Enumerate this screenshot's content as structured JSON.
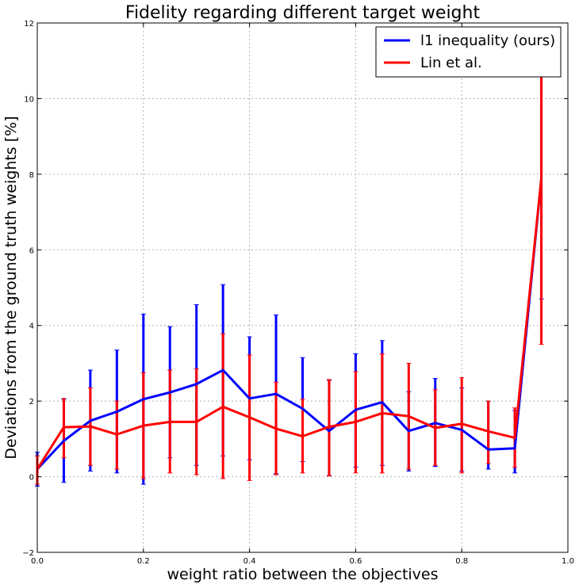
{
  "chart_data": {
    "type": "line",
    "title": "Fidelity regarding different target weight",
    "xlabel": "weight ratio between the objectives",
    "ylabel": "Deviations from the ground truth weights [%]",
    "xlim": [
      0.0,
      1.0
    ],
    "ylim": [
      -2,
      12
    ],
    "xticks": [
      0.0,
      0.2,
      0.4,
      0.6,
      0.8,
      1.0
    ],
    "xtick_labels": [
      "0.0",
      "0.2",
      "0.4",
      "0.6",
      "0.8",
      "1.0"
    ],
    "yticks": [
      -2,
      0,
      2,
      4,
      6,
      8,
      10,
      12
    ],
    "ytick_labels": [
      "−2",
      "0",
      "2",
      "4",
      "6",
      "8",
      "10",
      "12"
    ],
    "grid": true,
    "legend_position": "top-right",
    "x": [
      0.0,
      0.05,
      0.1,
      0.15,
      0.2,
      0.25,
      0.3,
      0.35,
      0.4,
      0.45,
      0.5,
      0.55,
      0.6,
      0.65,
      0.7,
      0.75,
      0.8,
      0.85,
      0.9,
      0.95
    ],
    "series": [
      {
        "name": "l1 inequality (ours)",
        "color": "#0000ff",
        "values": [
          0.2,
          0.95,
          1.48,
          1.72,
          2.05,
          2.23,
          2.45,
          2.82,
          2.07,
          2.19,
          1.8,
          1.21,
          1.77,
          1.97,
          1.21,
          1.42,
          1.24,
          0.72,
          0.75,
          7.9
        ],
        "err_low": [
          -0.25,
          -0.15,
          0.15,
          0.1,
          -0.2,
          0.5,
          0.3,
          0.55,
          0.45,
          0.08,
          0.4,
          0.03,
          0.25,
          0.3,
          0.15,
          0.27,
          0.15,
          0.2,
          0.1,
          4.7
        ],
        "err_high": [
          0.65,
          2.05,
          2.82,
          3.35,
          4.3,
          3.97,
          4.55,
          5.08,
          3.7,
          4.28,
          3.15,
          2.55,
          3.25,
          3.6,
          2.25,
          2.6,
          2.35,
          2.0,
          1.75,
          11.0
        ]
      },
      {
        "name": "Lin et al.",
        "color": "#ff0000",
        "values": [
          0.2,
          1.31,
          1.33,
          1.12,
          1.35,
          1.45,
          1.45,
          1.85,
          1.57,
          1.27,
          1.07,
          1.32,
          1.45,
          1.68,
          1.6,
          1.29,
          1.4,
          1.2,
          1.03,
          7.9
        ],
        "err_low": [
          -0.2,
          0.5,
          0.3,
          0.2,
          -0.05,
          0.1,
          0.05,
          -0.05,
          -0.1,
          0.05,
          0.1,
          0.02,
          0.1,
          0.1,
          0.2,
          0.3,
          0.1,
          0.35,
          0.25,
          3.5
        ],
        "err_high": [
          0.55,
          2.07,
          2.35,
          2.0,
          2.75,
          2.82,
          2.85,
          3.78,
          3.22,
          2.5,
          2.05,
          2.57,
          2.78,
          3.25,
          3.0,
          2.3,
          2.62,
          2.0,
          1.82,
          11.0
        ]
      }
    ]
  }
}
